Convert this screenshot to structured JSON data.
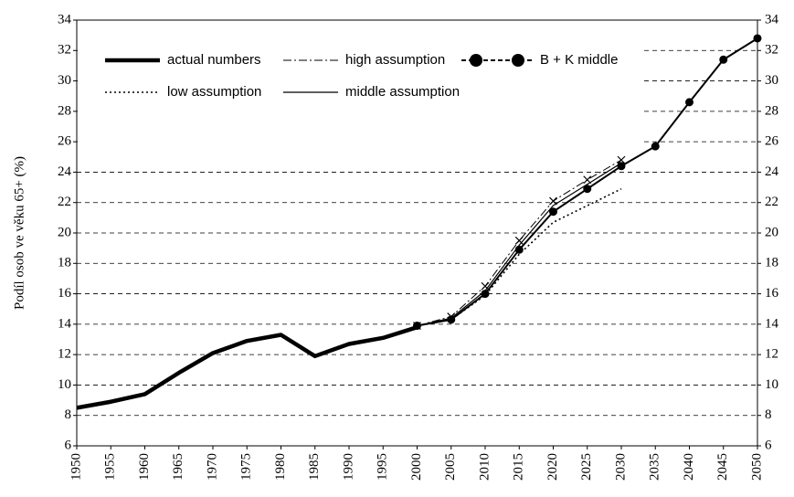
{
  "chart_data": {
    "type": "line",
    "y_label": "Podíl osob ve věku 65+ (%)",
    "x": [
      1950,
      1955,
      1960,
      1965,
      1970,
      1975,
      1980,
      1985,
      1990,
      1995,
      2000,
      2005,
      2010,
      2015,
      2020,
      2025,
      2030,
      2035,
      2040,
      2045,
      2050
    ],
    "xlim": [
      1950,
      2050
    ],
    "xticks": [
      1950,
      1955,
      1960,
      1965,
      1970,
      1975,
      1980,
      1985,
      1990,
      1995,
      2000,
      2005,
      2010,
      2015,
      2020,
      2025,
      2030,
      2035,
      2040,
      2045,
      2050
    ],
    "ylim": [
      6,
      34
    ],
    "yticks": [
      6,
      8,
      10,
      12,
      14,
      16,
      18,
      20,
      22,
      24,
      26,
      28,
      30,
      32,
      34
    ],
    "y2lim": [
      6,
      34
    ],
    "y2ticks": [
      6,
      8,
      10,
      12,
      14,
      16,
      18,
      20,
      22,
      24,
      26,
      28,
      30,
      32,
      34
    ],
    "grid": true,
    "legend": "top-left",
    "series": [
      {
        "name": "actual numbers",
        "color": "#000000",
        "style": "thick",
        "values": [
          8.5,
          8.9,
          9.4,
          10.8,
          12.1,
          12.9,
          13.3,
          11.9,
          12.7,
          13.1,
          13.8,
          null,
          null,
          null,
          null,
          null,
          null,
          null,
          null,
          null,
          null
        ]
      },
      {
        "name": "high assumption",
        "color": "#000000",
        "style": "dashdot",
        "values": [
          null,
          null,
          null,
          null,
          null,
          null,
          null,
          null,
          null,
          null,
          13.9,
          14.5,
          16.5,
          19.5,
          22.1,
          23.5,
          24.8,
          null,
          null,
          null,
          null
        ]
      },
      {
        "name": "B + K middle",
        "color": "#000000",
        "style": "markers",
        "values": [
          null,
          null,
          null,
          null,
          null,
          null,
          null,
          null,
          null,
          null,
          13.9,
          14.3,
          16.0,
          18.9,
          21.4,
          22.9,
          24.4,
          25.7,
          28.6,
          31.4,
          32.8
        ]
      },
      {
        "name": "low assumption",
        "color": "#000000",
        "style": "dotted",
        "values": [
          null,
          null,
          null,
          null,
          null,
          null,
          null,
          null,
          null,
          null,
          13.9,
          14.3,
          15.9,
          18.6,
          20.7,
          21.8,
          22.9,
          null,
          null,
          null,
          null
        ]
      },
      {
        "name": "middle assumption",
        "color": "#000000",
        "style": "solid",
        "values": [
          null,
          null,
          null,
          null,
          null,
          null,
          null,
          null,
          null,
          null,
          13.9,
          14.4,
          16.2,
          19.2,
          21.8,
          23.2,
          24.6,
          null,
          null,
          null,
          null
        ]
      }
    ]
  }
}
